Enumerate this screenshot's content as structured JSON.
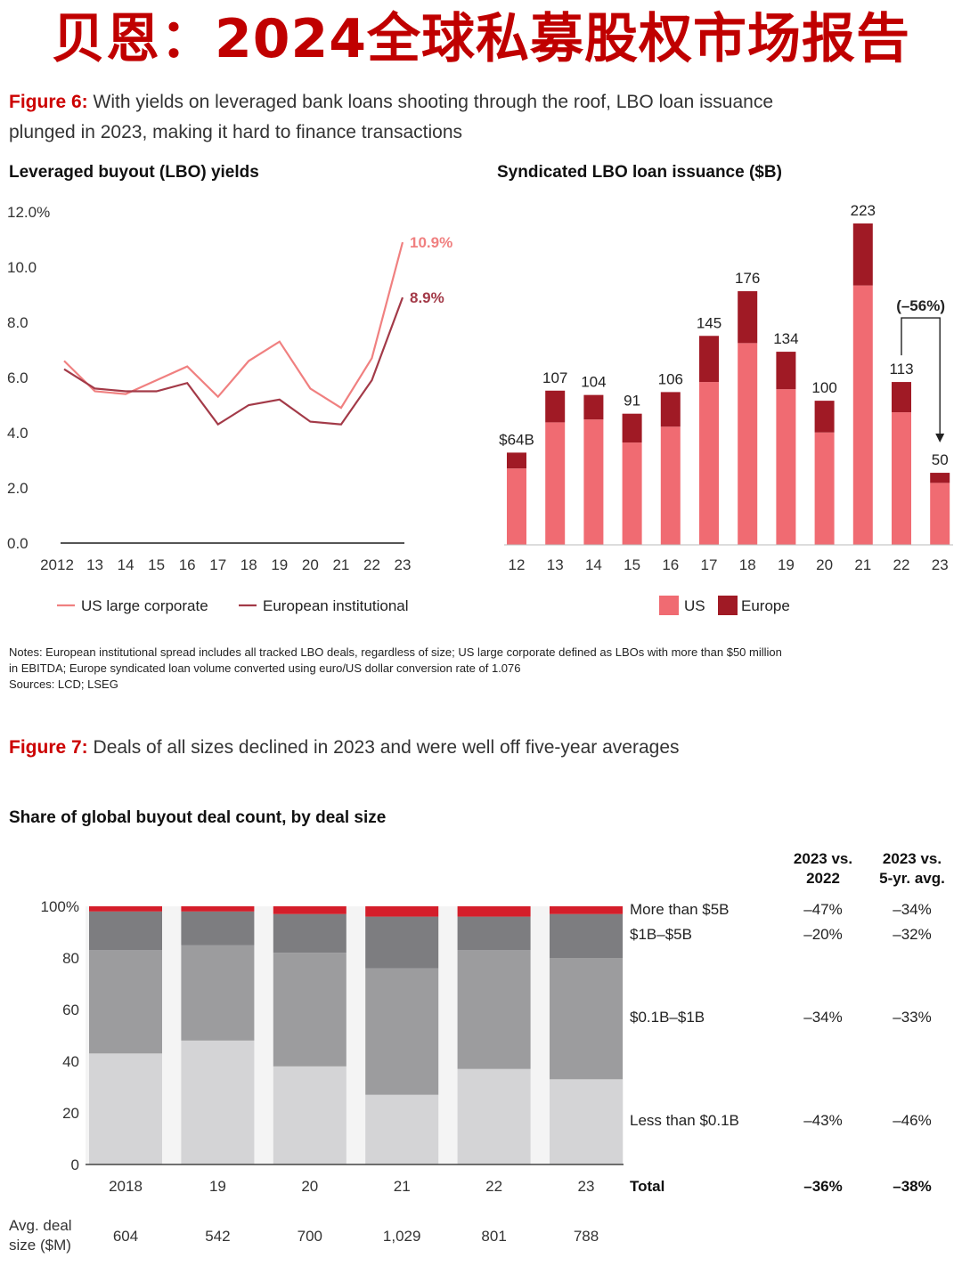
{
  "banner": "贝恩：2024全球私募股权市场报告",
  "figure6": {
    "label": "Figure 6:",
    "title_line1": "With yields on leveraged bank loans shooting through the roof, LBO loan issuance",
    "title_line2": "plunged in 2023, making it hard to finance transactions"
  },
  "figure7": {
    "label": "Figure 7:",
    "title": "Deals of all sizes declined in 2023 and were well off five-year averages"
  },
  "notes": {
    "line1": "Notes: European institutional spread includes all tracked LBO deals, regardless of size; US large corporate defined as LBOs with more than $50 million",
    "line2": "in EBITDA; Europe syndicated loan volume converted using euro/US dollar conversion rate of 1.076",
    "line3": "Sources: LCD; LSEG"
  },
  "colors": {
    "us_large_corporate": "#f08080",
    "european_institutional": "#a33a48",
    "us_bar": "#f06b72",
    "europe_bar": "#a01a25",
    "brand_red": "#cc0000"
  },
  "chart_data": [
    {
      "type": "line",
      "title": "Leveraged buyout (LBO) yields",
      "x": [
        "2012",
        "13",
        "14",
        "15",
        "16",
        "17",
        "18",
        "19",
        "20",
        "21",
        "22",
        "23"
      ],
      "yticks": [
        "12.0%",
        "10.0",
        "8.0",
        "6.0",
        "4.0",
        "2.0",
        "0.0"
      ],
      "ylim": [
        0,
        12
      ],
      "series": [
        {
          "name": "US large corporate",
          "values": [
            6.6,
            5.5,
            5.4,
            5.9,
            6.4,
            5.3,
            6.6,
            7.3,
            5.6,
            4.9,
            6.7,
            10.9
          ]
        },
        {
          "name": "European institutional",
          "values": [
            6.3,
            5.6,
            5.5,
            5.5,
            5.8,
            4.3,
            5.0,
            5.2,
            4.4,
            4.3,
            5.9,
            8.9
          ]
        }
      ],
      "end_labels": [
        "10.9%",
        "8.9%"
      ],
      "legend": "bottom"
    },
    {
      "type": "bar",
      "title": "Syndicated LBO loan issuance ($B)",
      "categories": [
        "12",
        "13",
        "14",
        "15",
        "16",
        "17",
        "18",
        "19",
        "20",
        "21",
        "22",
        "23"
      ],
      "series": [
        {
          "name": "US",
          "values": [
            53,
            85,
            87,
            71,
            82,
            113,
            140,
            108,
            78,
            180,
            92,
            43
          ]
        },
        {
          "name": "Europe",
          "values": [
            11,
            22,
            17,
            20,
            24,
            32,
            36,
            26,
            22,
            43,
            21,
            7
          ]
        }
      ],
      "totals": [
        "$64B",
        "107",
        "104",
        "91",
        "106",
        "145",
        "176",
        "134",
        "100",
        "223",
        "113",
        "50"
      ],
      "annotation": "(–56%)",
      "ylim": [
        0,
        240
      ],
      "legend": "bottom"
    },
    {
      "type": "bar",
      "title": "Share of global buyout deal count, by deal size",
      "stacked": true,
      "categories": [
        "2018",
        "19",
        "20",
        "21",
        "22",
        "23"
      ],
      "series": [
        {
          "name": "Less than $0.1B",
          "values": [
            43,
            48,
            38,
            27,
            37,
            33
          ]
        },
        {
          "name": "$0.1B–$1B",
          "values": [
            40,
            37,
            44,
            49,
            46,
            47
          ]
        },
        {
          "name": "$1B–$5B",
          "values": [
            15,
            13,
            15,
            20,
            13,
            17
          ]
        },
        {
          "name": "More than $5B",
          "values": [
            2,
            2,
            3,
            4,
            4,
            3
          ]
        }
      ],
      "yticks": [
        "100%",
        "80",
        "60",
        "40",
        "20",
        "0"
      ],
      "ylim": [
        0,
        100
      ],
      "avg_deal_label": "Avg. deal size ($M)",
      "avg_deal_label_line1": "Avg. deal",
      "avg_deal_label_line2": "size ($M)",
      "avg_deal_size": [
        "604",
        "542",
        "700",
        "1,029",
        "801",
        "788"
      ],
      "table_headers": [
        [
          "2023 vs.",
          "2022"
        ],
        [
          "2023 vs.",
          "5-yr. avg."
        ]
      ],
      "table_rows": [
        {
          "label": "More than $5B",
          "vs2022": "–47%",
          "vs5yr": "–34%"
        },
        {
          "label": "$1B–$5B",
          "vs2022": "–20%",
          "vs5yr": "–32%"
        },
        {
          "label": "$0.1B–$1B",
          "vs2022": "–34%",
          "vs5yr": "–33%"
        },
        {
          "label": "Less than $0.1B",
          "vs2022": "–43%",
          "vs5yr": "–46%"
        }
      ],
      "total_row": {
        "label": "Total",
        "vs2022": "–36%",
        "vs5yr": "–38%"
      }
    }
  ]
}
